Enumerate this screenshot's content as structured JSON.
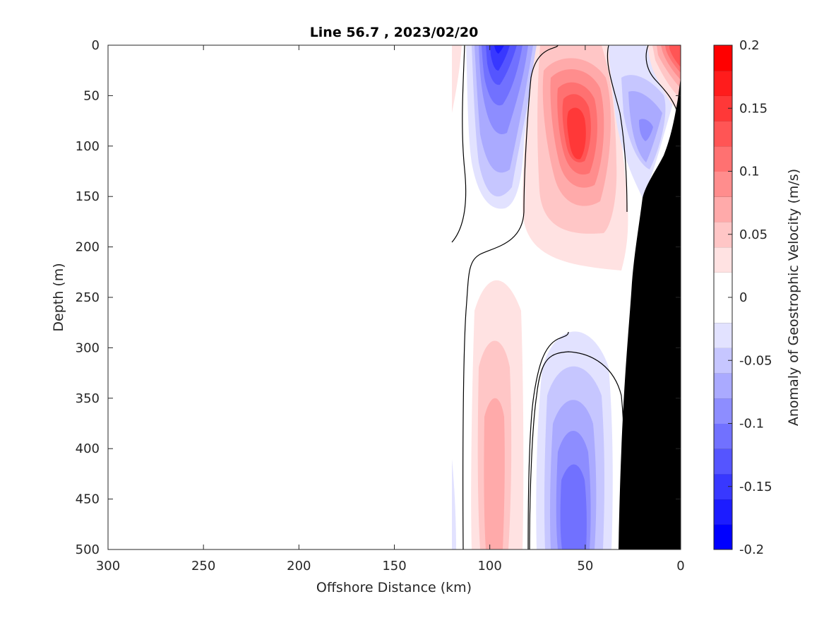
{
  "chart_data": {
    "type": "heatmap",
    "title": "Line 56.7 , 2023/02/20",
    "xlabel": "Offshore Distance (km)",
    "ylabel": "Depth (m)",
    "xlim": [
      300,
      0
    ],
    "ylim": [
      0,
      500
    ],
    "x_ticks": [
      "300",
      "250",
      "200",
      "150",
      "100",
      "50",
      "0"
    ],
    "y_ticks": [
      "0",
      "50",
      "100",
      "150",
      "200",
      "250",
      "300",
      "350",
      "400",
      "450",
      "500"
    ],
    "colorbar": {
      "label": "Anomaly of Geostrophic Velocity (m/s)",
      "min": -0.2,
      "max": 0.2,
      "levels": 18,
      "tick_values": [
        "0.2",
        "0.15",
        "0.1",
        "0.05",
        "0",
        "-0.05",
        "-0.1",
        "-0.15",
        "-0.2"
      ],
      "colors": [
        "#0000ff",
        "#1c1cff",
        "#3838ff",
        "#5555ff",
        "#7171ff",
        "#8d8dff",
        "#aaaaff",
        "#c6c6ff",
        "#e2e2ff",
        "#ffffff",
        "#ffffff",
        "#ffe2e2",
        "#ffc6c6",
        "#ffaaaa",
        "#ff8d8d",
        "#ff7171",
        "#ff5555",
        "#ff3838",
        "#ff1c1c",
        "#ff0000"
      ]
    },
    "features": [
      {
        "kind": "negative-cell",
        "x_km": 95,
        "depth_m": 10,
        "peak": -0.17
      },
      {
        "kind": "positive-cell",
        "x_km": 53,
        "depth_m": 100,
        "peak": 0.16
      },
      {
        "kind": "negative-cell",
        "x_km": 20,
        "depth_m": 80,
        "peak": -0.07
      },
      {
        "kind": "positive-cell",
        "x_km": 3,
        "depth_m": 15,
        "peak": 0.16
      },
      {
        "kind": "positive-cell",
        "x_km": 95,
        "depth_m": 440,
        "peak": 0.06
      },
      {
        "kind": "negative-cell",
        "x_km": 53,
        "depth_m": 480,
        "peak": -0.12
      }
    ],
    "bathymetry_km_at_depth": [
      [
        0,
        35
      ],
      [
        5,
        100
      ],
      [
        20,
        150
      ],
      [
        25,
        200
      ],
      [
        33,
        500
      ]
    ],
    "grid": false
  }
}
